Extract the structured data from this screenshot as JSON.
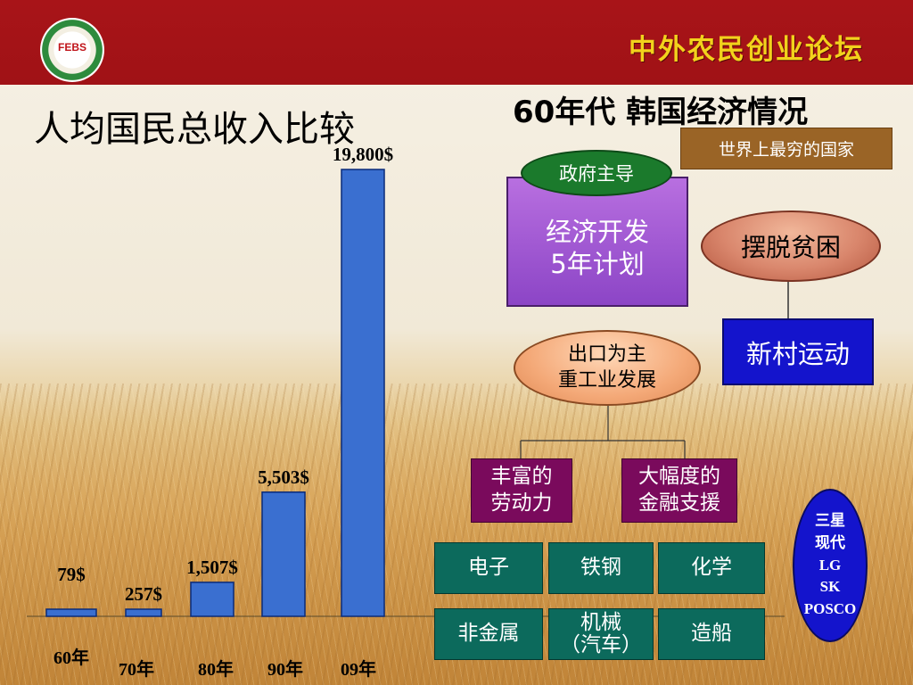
{
  "header": {
    "logo_text": "FEBS",
    "brand_title": "中外农民创业论坛"
  },
  "chart_data": {
    "type": "bar",
    "title": "人均国民总收入比较",
    "categories": [
      "60年",
      "70年",
      "80年",
      "90年",
      "09年"
    ],
    "values": [
      79,
      257,
      1507,
      5503,
      19800
    ],
    "value_labels": [
      "79$",
      "257$",
      "1,507$",
      "5,503$",
      "19,800$"
    ],
    "xlabel": "",
    "ylabel": "",
    "ylim": [
      0,
      19800
    ],
    "grid": false,
    "bar_color": "#3a6fd0"
  },
  "diagram": {
    "title": "60年代  韩国经济情况",
    "poorest": "世界上最穷的国家",
    "government": "政府主导",
    "econ_plan": [
      "经济开发",
      "5年计划"
    ],
    "poverty": "摆脱贫困",
    "village": "新村运动",
    "export": [
      "出口为主",
      "重工业发展"
    ],
    "labor": [
      "丰富的",
      "劳动力"
    ],
    "finance": [
      "大幅度的",
      "金融支援"
    ],
    "industries": [
      "电子",
      "铁钢",
      "化学",
      "非金属",
      "机械",
      "（汽车）",
      "造船"
    ],
    "chaebol": [
      "三星",
      "现代",
      "LG",
      "SK",
      "POSCO"
    ]
  }
}
